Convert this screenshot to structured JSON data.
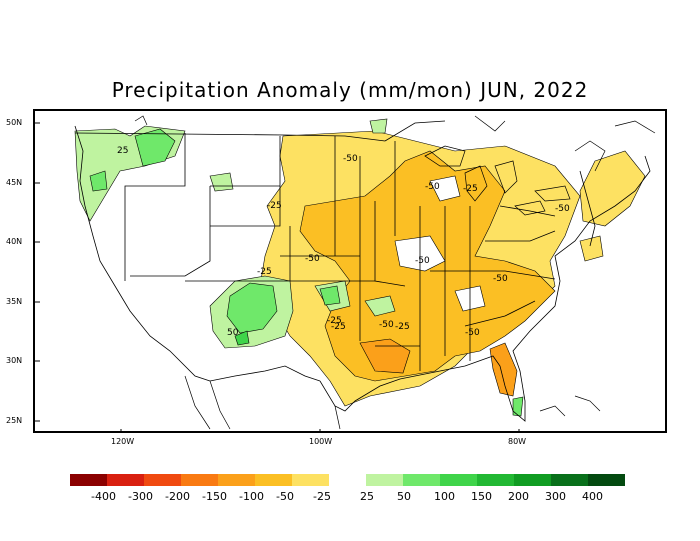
{
  "title": "Precipitation Anomaly (mm/mon) JUN, 2022",
  "latitude_labels": [
    "50N",
    "45N",
    "40N",
    "35N",
    "30N",
    "25N"
  ],
  "longitude_labels": [
    "120W",
    "100W",
    "80W"
  ],
  "contour_labels": [
    "25",
    "-50",
    "-50",
    "-25",
    "-25",
    "-50",
    "-50",
    "-50",
    "-25",
    "50",
    "-25",
    "-50",
    "-25",
    "-25",
    "-50",
    "-50"
  ],
  "legend": {
    "negative_labels": [
      "-400",
      "-300",
      "-200",
      "-150",
      "-100",
      "-50",
      "-25"
    ],
    "positive_labels": [
      "25",
      "50",
      "100",
      "150",
      "200",
      "300",
      "400"
    ],
    "negative_colors": [
      "#8b0000",
      "#d92010",
      "#f04a10",
      "#f97a12",
      "#fba01a",
      "#fbbf24",
      "#fde162"
    ],
    "positive_colors": [
      "#bff3a0",
      "#6fe86a",
      "#3fd44a",
      "#22b833",
      "#109c22",
      "#08701a",
      "#034a10"
    ]
  }
}
